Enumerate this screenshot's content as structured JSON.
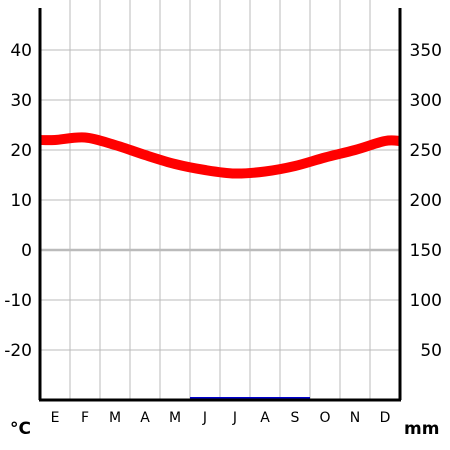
{
  "chart_data": {
    "type": "line",
    "categories": [
      "E",
      "F",
      "M",
      "A",
      "M",
      "J",
      "J",
      "A",
      "S",
      "O",
      "N",
      "D"
    ],
    "series": [
      {
        "axis": "left",
        "color": "#ff0000",
        "values": [
          22.0,
          22.5,
          21.0,
          19.0,
          17.2,
          16.0,
          15.3,
          15.7,
          16.8,
          18.5,
          20.0,
          21.8
        ]
      },
      {
        "axis": "right",
        "color": "#0000cc",
        "values": [
          0,
          0,
          0,
          0,
          0,
          0.5,
          0.5,
          0.5,
          0.5,
          0,
          0,
          0
        ]
      }
    ],
    "y_left": {
      "unit": "°C",
      "lim": [
        -30,
        50
      ],
      "ticks": [
        40,
        30,
        20,
        10,
        0,
        -10,
        -20
      ]
    },
    "y_right": {
      "unit": "mm",
      "lim": [
        0,
        400
      ],
      "ticks": [
        350,
        300,
        250,
        200,
        150,
        100,
        50
      ]
    },
    "grid": true
  }
}
